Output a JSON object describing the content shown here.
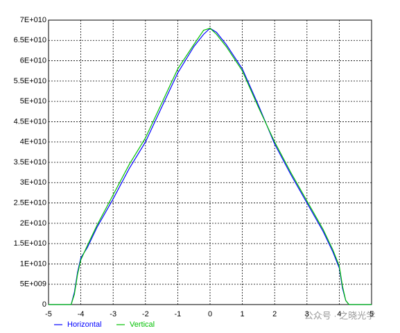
{
  "chart_data": {
    "type": "line",
    "x": [
      -5,
      -4.5,
      -4.3,
      -4.2,
      -4.1,
      -4.0,
      -3.8,
      -3.5,
      -3.0,
      -2.5,
      -2.0,
      -1.5,
      -1.0,
      -0.5,
      -0.2,
      0,
      0.2,
      0.5,
      1.0,
      1.5,
      2.0,
      2.5,
      3.0,
      3.5,
      3.8,
      4.0,
      4.1,
      4.2,
      4.3,
      4.5,
      5
    ],
    "series": [
      {
        "name": "Horizontal",
        "color": "#0000ff",
        "values": [
          0,
          0,
          0,
          3000000000,
          8000000000,
          11500000000,
          14000000000,
          19000000000,
          26000000000,
          33500000000,
          40000000000,
          48500000000,
          57000000000,
          63500000000,
          66500000000,
          68000000000,
          67000000000,
          64000000000,
          58000000000,
          49000000000,
          39500000000,
          32000000000,
          25000000000,
          18000000000,
          13000000000,
          9000000000,
          4000000000,
          1000000000,
          0,
          0,
          0
        ]
      },
      {
        "name": "Vertical",
        "color": "#00c000",
        "values": [
          0,
          0,
          0,
          2500000000,
          7500000000,
          11000000000,
          14500000000,
          19500000000,
          27000000000,
          34500000000,
          41000000000,
          49500000000,
          58000000000,
          64000000000,
          67500000000,
          68000000000,
          66500000000,
          63500000000,
          57500000000,
          48500000000,
          40000000000,
          32500000000,
          25500000000,
          18500000000,
          13500000000,
          9500000000,
          4500000000,
          1000000000,
          0,
          0,
          0
        ]
      }
    ],
    "xlim": [
      -5,
      5
    ],
    "xticks": [
      -5,
      -4,
      -3,
      -2,
      -1,
      0,
      1,
      2,
      3,
      4,
      5
    ],
    "ylim": [
      0,
      70000000000
    ],
    "yticks": [
      0,
      {
        "value": 5000000000,
        "label": "5E+009"
      },
      {
        "value": 10000000000,
        "label": "1E+010"
      },
      {
        "value": 15000000000,
        "label": "1.5E+010"
      },
      {
        "value": 20000000000,
        "label": "2E+010"
      },
      {
        "value": 25000000000,
        "label": "2.5E+010"
      },
      {
        "value": 30000000000,
        "label": "3E+010"
      },
      {
        "value": 35000000000,
        "label": "3.5E+010"
      },
      {
        "value": 40000000000,
        "label": "4E+010"
      },
      {
        "value": 45000000000,
        "label": "4.5E+010"
      },
      {
        "value": 50000000000,
        "label": "5E+010"
      },
      {
        "value": 55000000000,
        "label": "5.5E+010"
      },
      {
        "value": 60000000000,
        "label": "6E+010"
      },
      {
        "value": 65000000000,
        "label": "6.5E+010"
      },
      {
        "value": 70000000000,
        "label": "7E+010"
      }
    ],
    "grid": true,
    "watermark": "公众号 · 之晓光学"
  }
}
